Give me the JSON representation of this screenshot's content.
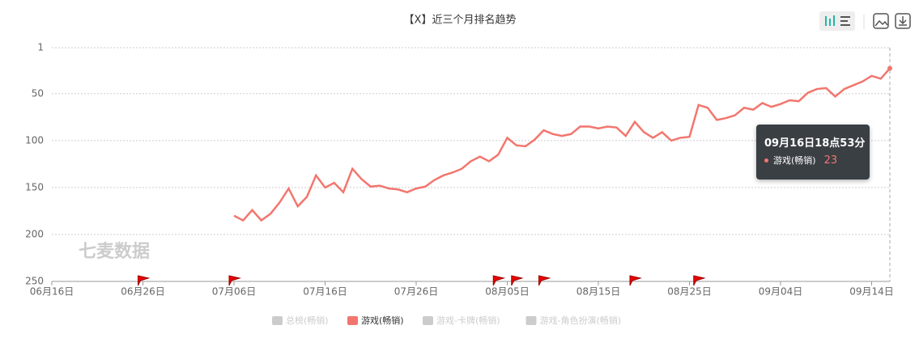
{
  "chart_data": {
    "type": "line",
    "title": "【X】近三个月排名趋势",
    "watermark": "七麦数据",
    "x": [
      "07月06日",
      "07月07日",
      "07月08日",
      "07月09日",
      "07月10日",
      "07月11日",
      "07月12日",
      "07月13日",
      "07月14日",
      "07月15日",
      "07月16日",
      "07月17日",
      "07月18日",
      "07月19日",
      "07月20日",
      "07月21日",
      "07月22日",
      "07月23日",
      "07月24日",
      "07月25日",
      "07月26日",
      "07月27日",
      "07月28日",
      "07月29日",
      "07月30日",
      "07月31日",
      "08月01日",
      "08月02日",
      "08月03日",
      "08月04日",
      "08月05日",
      "08月06日",
      "08月07日",
      "08月08日",
      "08月09日",
      "08月10日",
      "08月11日",
      "08月12日",
      "08月13日",
      "08月14日",
      "08月15日",
      "08月16日",
      "08月17日",
      "08月18日",
      "08月19日",
      "08月20日",
      "08月21日",
      "08月22日",
      "08月23日",
      "08月24日",
      "08月25日",
      "08月26日",
      "08月27日",
      "08月28日",
      "08月29日",
      "08月30日",
      "08月31日",
      "09月01日",
      "09月02日",
      "09月03日",
      "09月04日",
      "09月05日",
      "09月06日",
      "09月07日",
      "09月08日",
      "09月09日",
      "09月10日",
      "09月11日",
      "09月12日",
      "09月13日",
      "09月14日",
      "09月15日",
      "09月16日"
    ],
    "series": [
      {
        "name": "总榜(畅销)",
        "color": "#cccccc",
        "hidden": true
      },
      {
        "name": "游戏(畅销)",
        "color": "#f2766e",
        "values": [
          180,
          185,
          174,
          185,
          178,
          166,
          151,
          170,
          160,
          137,
          150,
          145,
          155,
          130,
          141,
          149,
          148,
          151,
          152,
          155,
          151,
          149,
          142,
          137,
          134,
          130,
          122,
          117,
          122,
          115,
          97,
          105,
          106,
          99,
          89,
          93,
          95,
          93,
          85,
          85,
          87,
          85,
          86,
          95,
          80,
          91,
          97,
          91,
          100,
          97,
          96,
          62,
          65,
          78,
          76,
          73,
          65,
          67,
          60,
          64,
          61,
          57,
          58,
          49,
          45,
          44,
          53,
          45,
          41,
          37,
          31,
          34,
          23
        ]
      },
      {
        "name": "游戏-卡牌(畅销)",
        "color": "#cccccc",
        "hidden": true
      },
      {
        "name": "游戏-角色扮演(畅销)",
        "color": "#cccccc",
        "hidden": true
      }
    ],
    "xlim": [
      "06月16日",
      "09月16日"
    ],
    "xticks": [
      "06月16日",
      "06月26日",
      "07月06日",
      "07月16日",
      "07月26日",
      "08月05日",
      "08月15日",
      "08月25日",
      "09月04日",
      "09月14日"
    ],
    "ylim": [
      1,
      250
    ],
    "y_inverted": true,
    "yticks": [
      1,
      50,
      100,
      150,
      200,
      250
    ],
    "grid": true,
    "event_flags": [
      "06月26日",
      "07月06日",
      "08月04日",
      "08月06日",
      "08月09日",
      "08月19日",
      "08月26日"
    ],
    "tooltip": {
      "title": "09月16日18点53分",
      "series_index": 1,
      "point_index": 72
    }
  }
}
